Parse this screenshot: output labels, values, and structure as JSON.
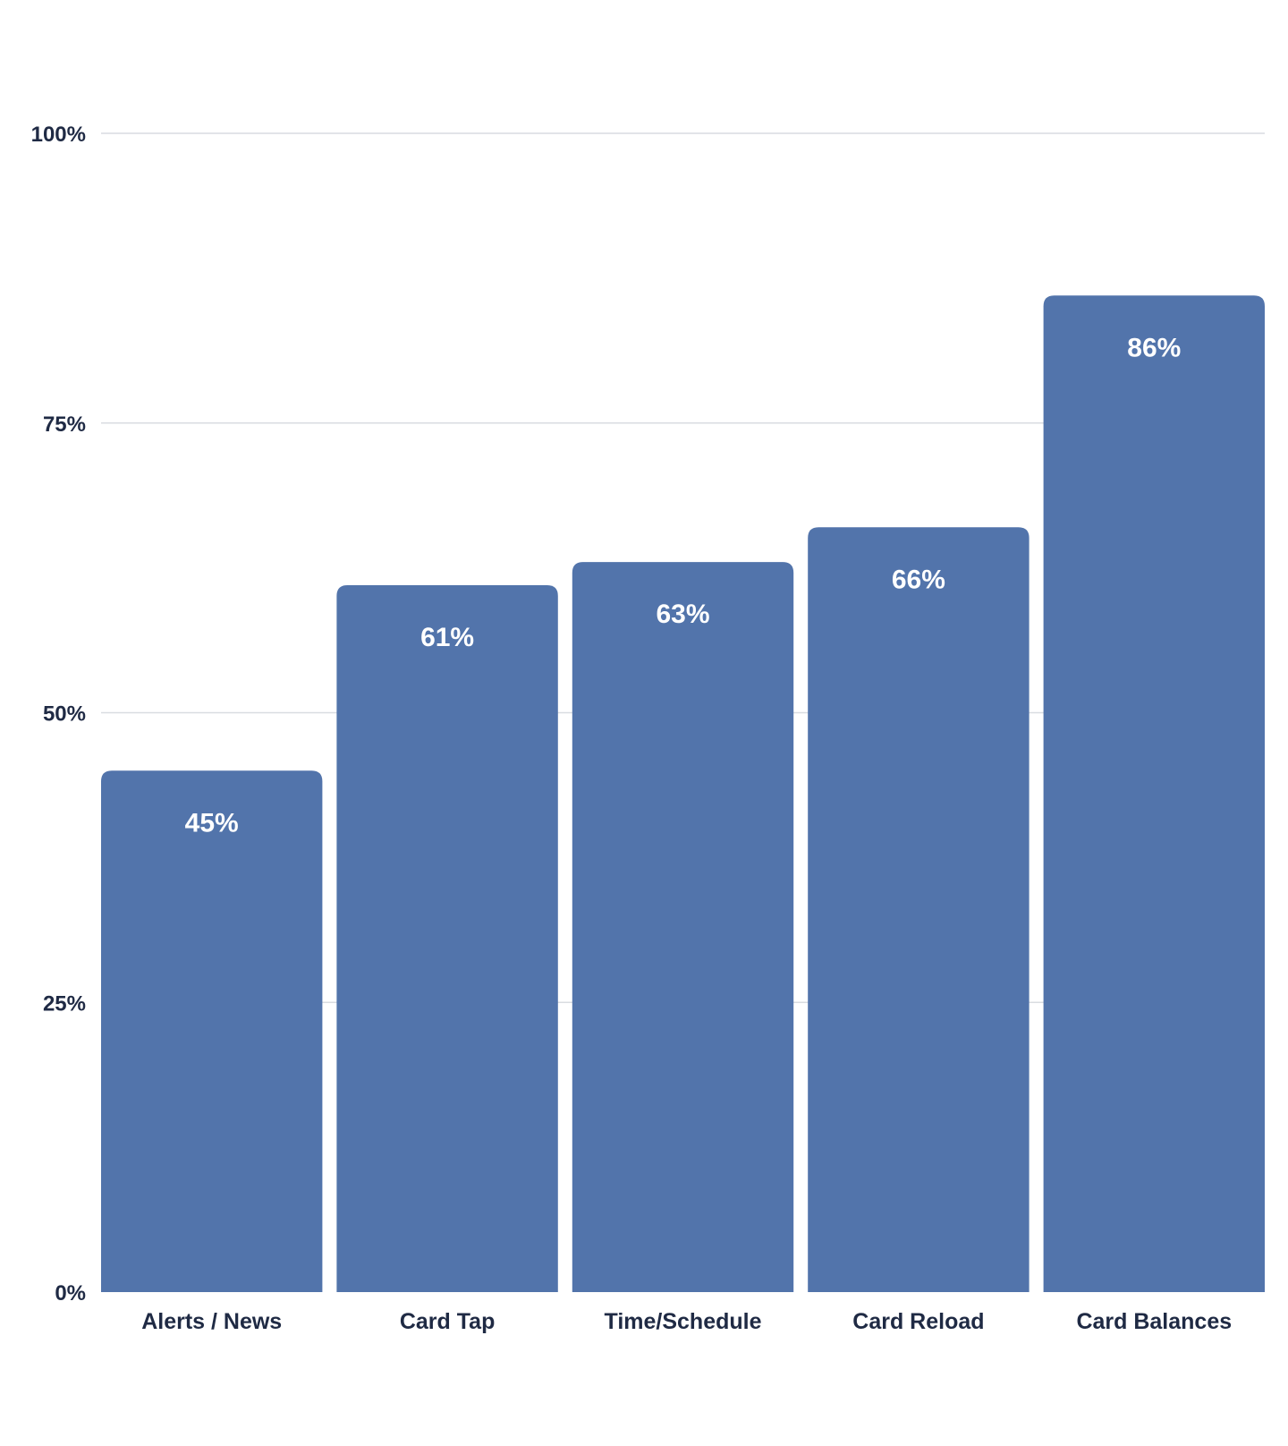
{
  "chart_data": {
    "type": "bar",
    "categories": [
      "Alerts / News",
      "Card Tap",
      "Time/Schedule",
      "Card Reload",
      "Card Balances"
    ],
    "values": [
      45,
      61,
      63,
      66,
      86
    ],
    "value_labels": [
      "45%",
      "61%",
      "63%",
      "66%",
      "86%"
    ],
    "ylim": [
      0,
      100
    ],
    "yticks": [
      0,
      25,
      50,
      75,
      100
    ],
    "ytick_labels": [
      "0%",
      "25%",
      "50%",
      "75%",
      "100%"
    ],
    "grid": true,
    "bar_color": "#5274ab",
    "label_color": "#1f2a44",
    "value_label_color": "#ffffff",
    "gridline_color": "#d9dce1"
  }
}
